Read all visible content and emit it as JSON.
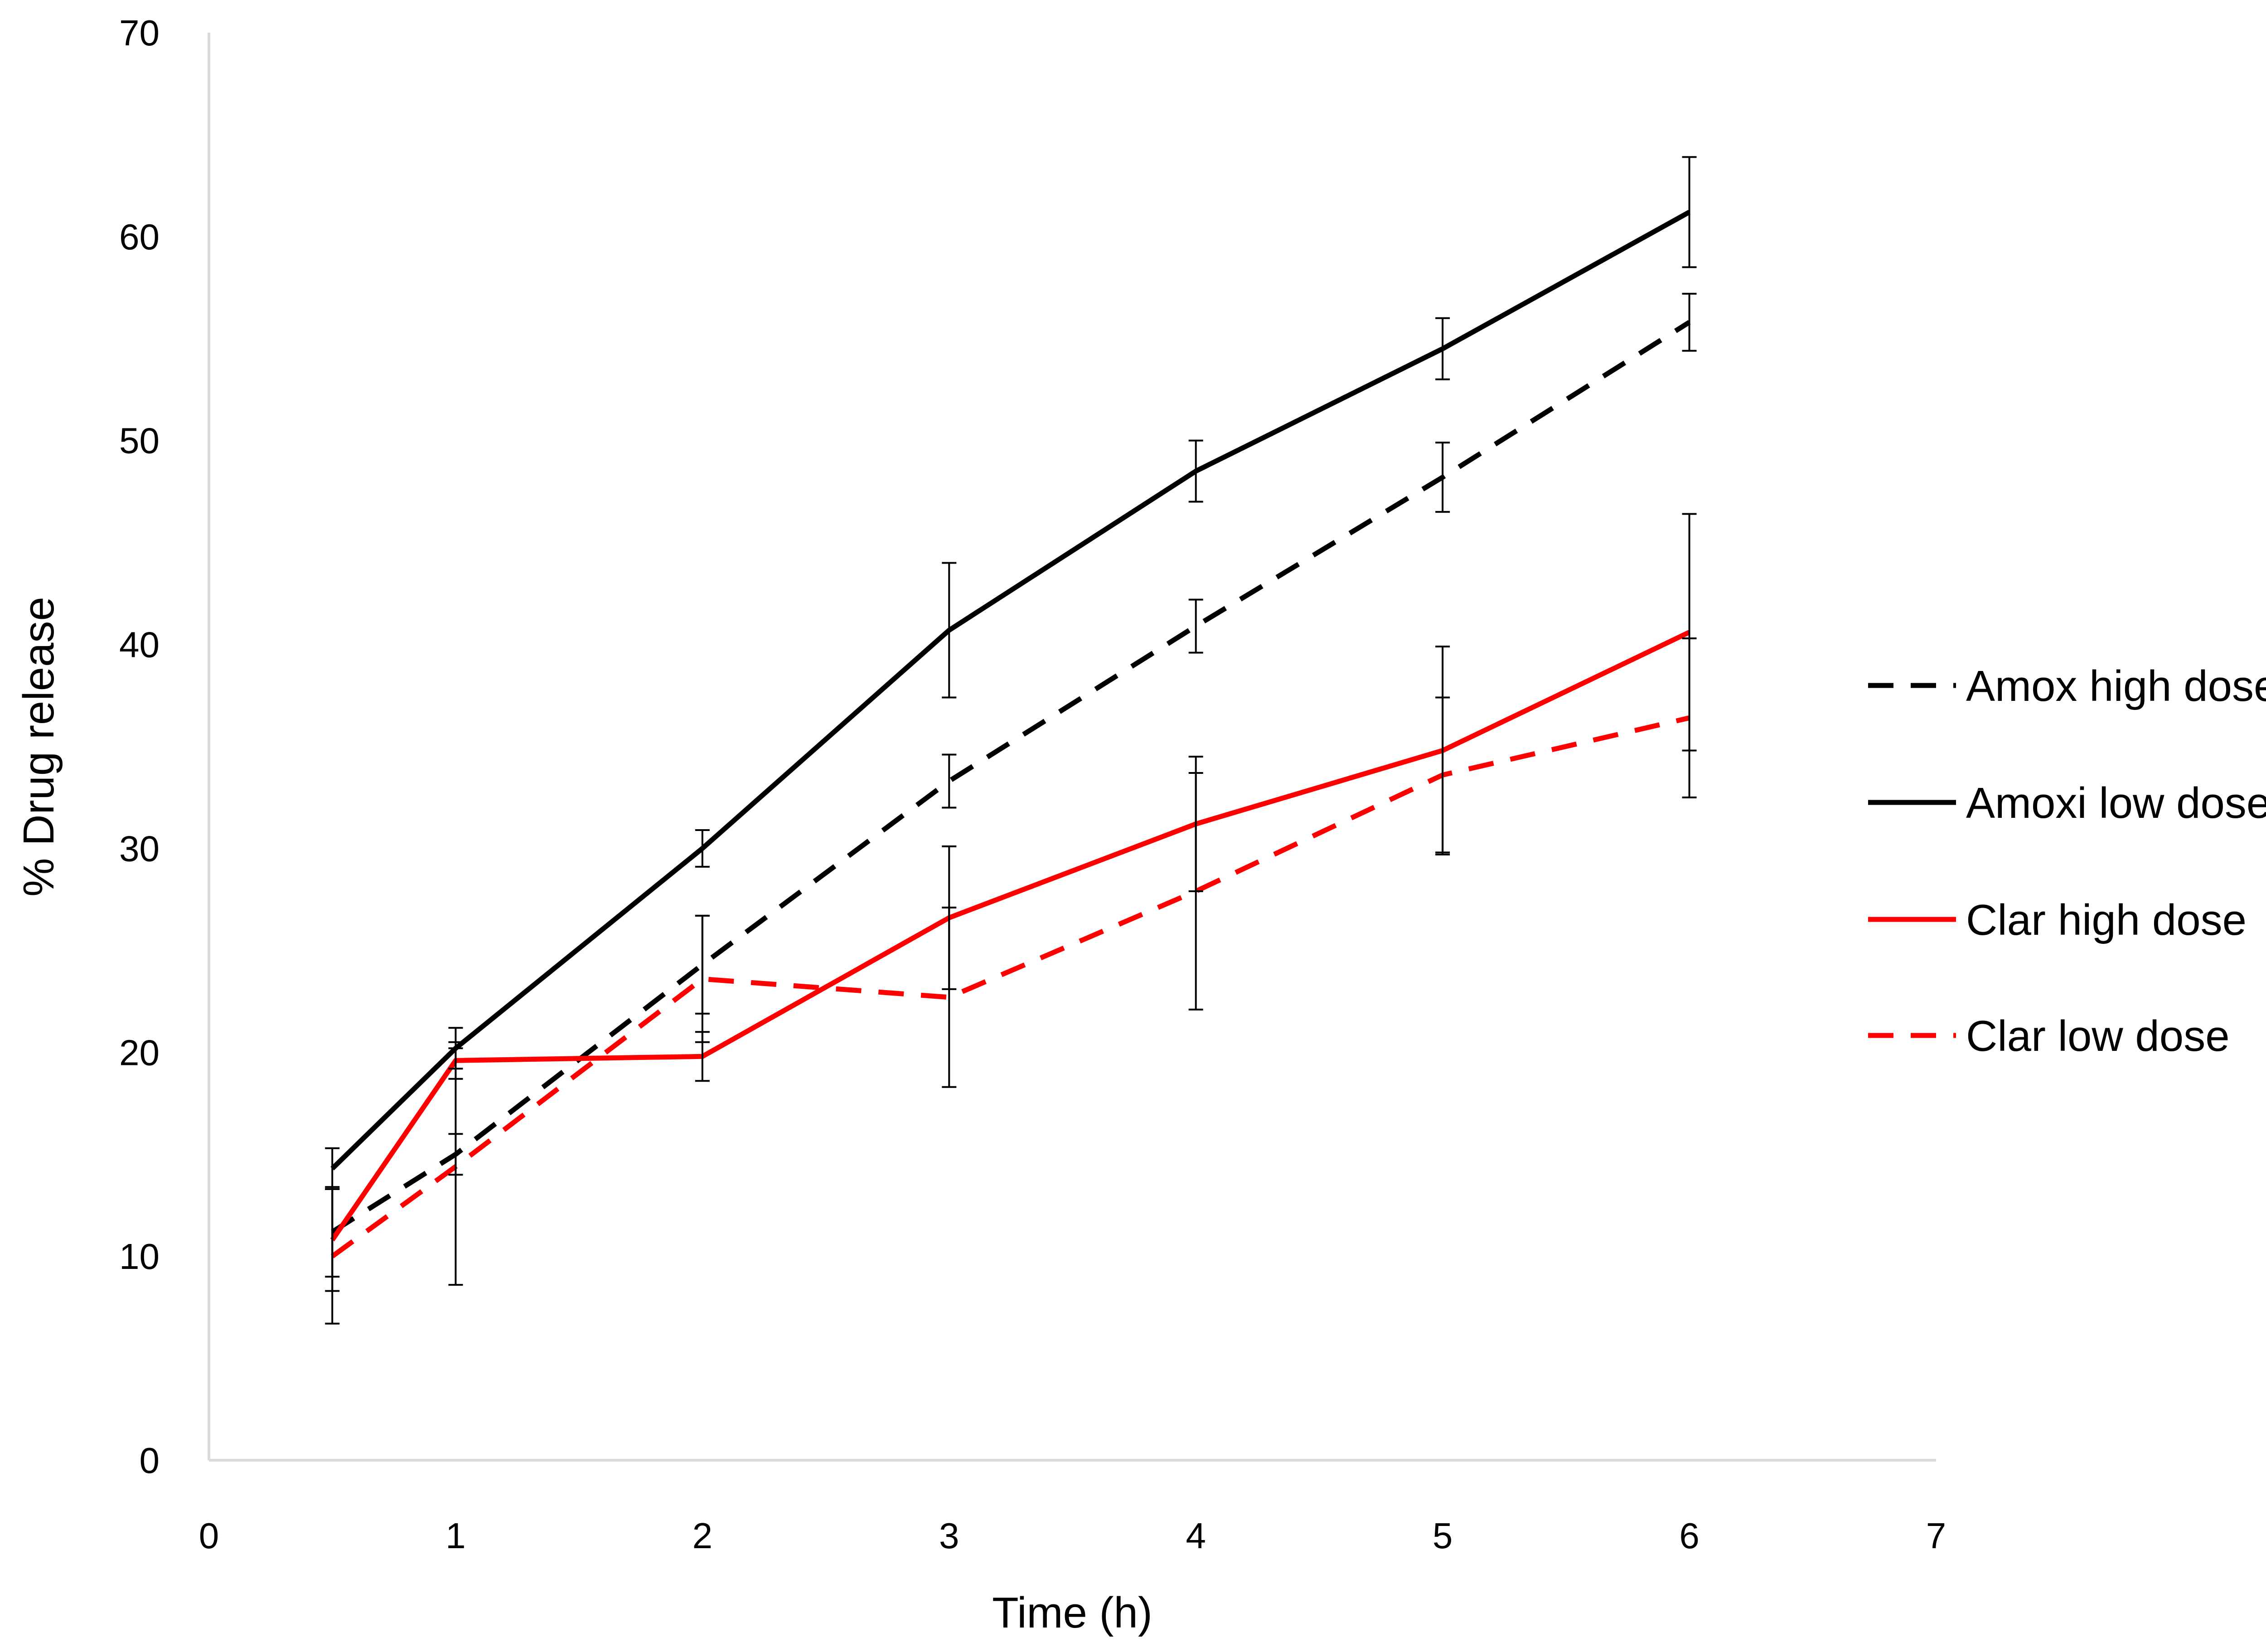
{
  "chart_data": {
    "type": "line",
    "title": "",
    "xlabel": "Time (h)",
    "ylabel": "% Drug release",
    "xlim": [
      0,
      7
    ],
    "ylim": [
      0,
      70
    ],
    "x_ticks": [
      "0",
      "1",
      "2",
      "3",
      "4",
      "5",
      "6",
      "7"
    ],
    "y_ticks": [
      "0",
      "10",
      "20",
      "30",
      "40",
      "50",
      "60",
      "70"
    ],
    "grid": false,
    "legend_position": "right",
    "x": [
      0.5,
      1,
      2,
      3,
      4,
      5,
      6
    ],
    "series": [
      {
        "name": "Amox high dose",
        "color": "#000000",
        "dash": "dashed",
        "values": [
          11.2,
          15.0,
          24.3,
          33.3,
          40.9,
          48.2,
          55.8
        ],
        "errors": [
          2.2,
          1.0,
          2.4,
          1.3,
          1.3,
          1.7,
          1.4
        ]
      },
      {
        "name": "Amoxi low dose",
        "color": "#000000",
        "dash": "solid",
        "values": [
          14.3,
          20.2,
          30.0,
          40.7,
          48.5,
          54.5,
          61.2
        ],
        "errors": [
          1.0,
          1.0,
          0.9,
          3.3,
          1.5,
          1.5,
          2.7
        ]
      },
      {
        "name": "Clar high dose",
        "color": "#ff0000",
        "dash": "solid",
        "values": [
          10.8,
          19.6,
          19.8,
          26.6,
          31.2,
          34.8,
          40.6
        ],
        "errors": [
          2.5,
          0.9,
          1.2,
          3.5,
          3.3,
          5.1,
          5.8
        ]
      },
      {
        "name": "Clar low dose",
        "color": "#ff0000",
        "dash": "dashed",
        "values": [
          10.0,
          14.4,
          23.6,
          22.7,
          27.9,
          33.6,
          36.4
        ],
        "errors": [
          3.3,
          5.8,
          3.1,
          4.4,
          5.8,
          3.8,
          3.9
        ]
      }
    ]
  }
}
